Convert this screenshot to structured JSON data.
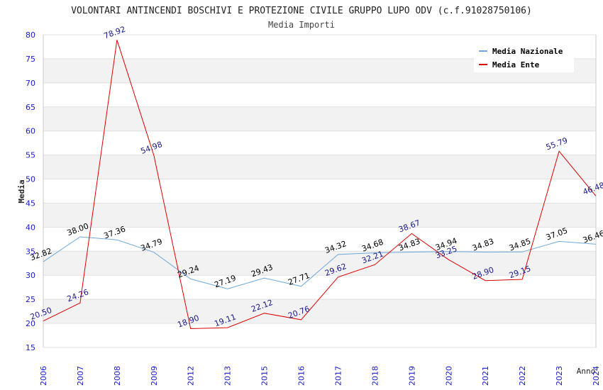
{
  "chart_data": {
    "type": "line",
    "title": "VOLONTARI ANTINCENDI BOSCHIVI E PROTEZIONE CIVILE GRUPPO LUPO ODV (c.f.91028750106)",
    "subtitle": "Media Importi",
    "xlabel": "Anno",
    "ylabel": "Media",
    "ylim": [
      15,
      80
    ],
    "yticks": [
      "15",
      "20",
      "25",
      "30",
      "35",
      "40",
      "45",
      "50",
      "55",
      "60",
      "65",
      "70",
      "75",
      "80"
    ],
    "categories": [
      "2006",
      "2007",
      "2008",
      "2009",
      "2012",
      "2013",
      "2015",
      "2016",
      "2017",
      "2018",
      "2019",
      "2020",
      "2021",
      "2022",
      "2023",
      "2024"
    ],
    "series": [
      {
        "name": "Media Nazionale",
        "color": "#6fa8dc",
        "labelColor": "#000000",
        "values": [
          32.82,
          38.0,
          37.36,
          34.79,
          29.24,
          27.19,
          29.43,
          27.71,
          34.32,
          34.68,
          34.83,
          34.94,
          34.83,
          34.85,
          37.05,
          36.46
        ],
        "labels": [
          "32.82",
          "38.00",
          "37.36",
          "34.79",
          "29.24",
          "27.19",
          "29.43",
          "27.71",
          "34.32",
          "34.68",
          "34.83",
          "34.94",
          "34.83",
          "34.85",
          "37.05",
          "36.46"
        ]
      },
      {
        "name": "Media Ente",
        "color": "#e00000",
        "labelColor": "#1a1a8c",
        "values": [
          20.5,
          24.26,
          78.92,
          54.98,
          18.9,
          19.11,
          22.12,
          20.76,
          29.62,
          32.21,
          38.67,
          33.25,
          28.9,
          29.15,
          55.79,
          46.48
        ],
        "labels": [
          "20.50",
          "24.26",
          "78.92",
          "54.98",
          "18.90",
          "19.11",
          "22.12",
          "20.76",
          "29.62",
          "32.21",
          "38.67",
          "33.25",
          "28.90",
          "29.15",
          "55.79",
          "46.48"
        ]
      }
    ],
    "legend": "top-right",
    "grid": true,
    "colors": {
      "band": "#f2f2f2",
      "axisText": "#1a1acc",
      "gridLine": "#e0e0e0"
    }
  }
}
